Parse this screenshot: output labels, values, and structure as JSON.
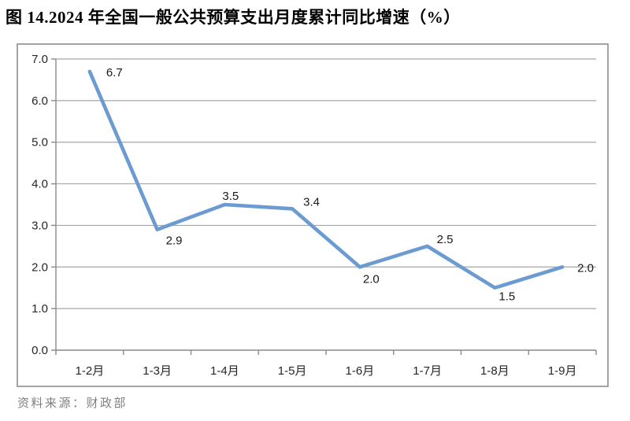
{
  "title": "图 14.2024 年全国一般公共预算支出月度累计同比增速（%）",
  "source": "资料来源：财政部",
  "colors": {
    "line": "#6C9BD1",
    "gridline": "#a6a6a6",
    "axis": "#8a8a8a",
    "box_border": "#a3a3a3",
    "tick_label": "#262626",
    "data_label": "#1a1a1a",
    "source_text": "#808080",
    "title_text": "#000000"
  },
  "chart_data": {
    "type": "line",
    "title": "图 14.2024 年全国一般公共预算支出月度累计同比增速（%）",
    "categories": [
      "1-2月",
      "1-3月",
      "1-4月",
      "1-5月",
      "1-6月",
      "1-7月",
      "1-8月",
      "1-9月"
    ],
    "values": [
      6.7,
      2.9,
      3.5,
      3.4,
      2.0,
      2.5,
      1.5,
      2.0
    ],
    "data_labels": [
      "6.7",
      "2.9",
      "3.5",
      "3.4",
      "2.0",
      "2.5",
      "1.5",
      "2.0"
    ],
    "xlabel": "",
    "ylabel": "",
    "ylim": [
      0.0,
      7.0
    ],
    "ytick_step": 1.0,
    "ytick_labels": [
      "0.0",
      "1.0",
      "2.0",
      "3.0",
      "4.0",
      "5.0",
      "6.0",
      "7.0"
    ],
    "grid": true,
    "legend_position": "none",
    "markers": false,
    "source": "资料来源：财政部"
  }
}
